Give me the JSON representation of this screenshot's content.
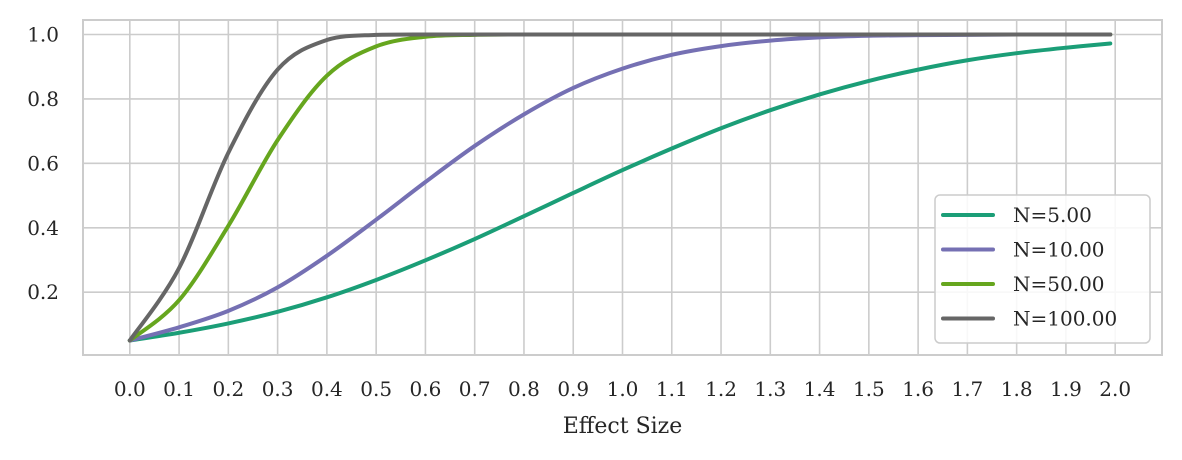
{
  "chart_data": {
    "type": "line",
    "title": "",
    "xlabel": "Effect Size",
    "ylabel": "",
    "xlim": [
      -0.095,
      2.095
    ],
    "ylim": [
      0.005,
      1.045
    ],
    "xticks": [
      0.0,
      0.1,
      0.2,
      0.3,
      0.4,
      0.5,
      0.6,
      0.7,
      0.8,
      0.9,
      1.0,
      1.1,
      1.2,
      1.3,
      1.4,
      1.5,
      1.6,
      1.7,
      1.8,
      1.9,
      2.0
    ],
    "xtick_labels": [
      "0.0",
      "0.1",
      "0.2",
      "0.3",
      "0.4",
      "0.5",
      "0.6",
      "0.7",
      "0.8",
      "0.9",
      "1.0",
      "1.1",
      "1.2",
      "1.3",
      "1.4",
      "1.5",
      "1.6",
      "1.7",
      "1.8",
      "1.9",
      "2.0"
    ],
    "yticks": [
      0.2,
      0.4,
      0.6,
      0.8,
      1.0
    ],
    "ytick_labels": [
      "0.2",
      "0.4",
      "0.6",
      "0.8",
      "1.0"
    ],
    "grid": true,
    "legend_position": "lower-right",
    "x": [
      0.0,
      0.1,
      0.2,
      0.3,
      0.4,
      0.5,
      0.6,
      0.7,
      0.8,
      0.9,
      1.0,
      1.1,
      1.2,
      1.3,
      1.4,
      1.5,
      1.6,
      1.7,
      1.8,
      1.9,
      1.99
    ],
    "series": [
      {
        "name": "N=5.00",
        "color": "#1b9e77",
        "values": [
          0.05,
          0.074,
          0.103,
          0.139,
          0.184,
          0.238,
          0.299,
          0.365,
          0.436,
          0.508,
          0.579,
          0.646,
          0.709,
          0.765,
          0.814,
          0.856,
          0.891,
          0.92,
          0.942,
          0.959,
          0.972
        ]
      },
      {
        "name": "N=10.00",
        "color": "#7570b3",
        "values": [
          0.05,
          0.091,
          0.142,
          0.215,
          0.313,
          0.425,
          0.542,
          0.654,
          0.752,
          0.834,
          0.894,
          0.937,
          0.964,
          0.981,
          0.991,
          0.996,
          0.998,
          0.999,
          1.0,
          1.0,
          1.0
        ]
      },
      {
        "name": "N=50.00",
        "color": "#66a61e",
        "values": [
          0.05,
          0.175,
          0.406,
          0.672,
          0.872,
          0.963,
          0.993,
          0.999,
          1.0,
          1.0,
          1.0,
          1.0,
          1.0,
          1.0,
          1.0,
          1.0,
          1.0,
          1.0,
          1.0,
          1.0,
          1.0
        ]
      },
      {
        "name": "N=100.00",
        "color": "#666666",
        "values": [
          0.05,
          0.275,
          0.633,
          0.891,
          0.983,
          0.999,
          1.0,
          1.0,
          1.0,
          1.0,
          1.0,
          1.0,
          1.0,
          1.0,
          1.0,
          1.0,
          1.0,
          1.0,
          1.0,
          1.0,
          1.0
        ]
      }
    ]
  }
}
